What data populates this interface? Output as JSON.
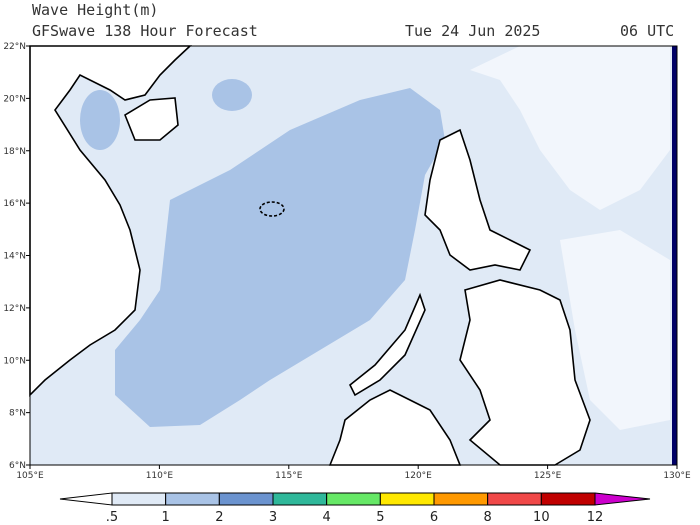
{
  "header": {
    "title": "Wave Height(m)",
    "subtitle": "GFSwave 138 Hour Forecast",
    "date": "Tue 24 Jun 2025",
    "time": "06 UTC"
  },
  "map": {
    "lon_ticks": [
      {
        "value": 105,
        "label": "105°E"
      },
      {
        "value": 110,
        "label": "110°E"
      },
      {
        "value": 115,
        "label": "115°E"
      },
      {
        "value": 120,
        "label": "120°E"
      },
      {
        "value": 125,
        "label": "125°E"
      },
      {
        "value": 130,
        "label": "130°E"
      }
    ],
    "lat_ticks": [
      {
        "value": 6,
        "label": "6°N"
      },
      {
        "value": 8,
        "label": "8°N"
      },
      {
        "value": 10,
        "label": "10°N"
      },
      {
        "value": 12,
        "label": "12°N"
      },
      {
        "value": 14,
        "label": "14°N"
      },
      {
        "value": 16,
        "label": "16°N"
      },
      {
        "value": 18,
        "label": "18°N"
      },
      {
        "value": 20,
        "label": "20°N"
      },
      {
        "value": 22,
        "label": "22°N"
      }
    ]
  },
  "colorbar": {
    "levels": [
      {
        "value": 0.5,
        "label": ".5"
      },
      1,
      2,
      3,
      4,
      5,
      6,
      8,
      10,
      12
    ],
    "colors": [
      "#ffffff",
      "#e0eaf6",
      "#a9c3e6",
      "#6b93cf",
      "#2fb89a",
      "#66e866",
      "#ffe800",
      "#ff9900",
      "#f04848",
      "#c00000",
      "#cc00cc"
    ]
  }
}
